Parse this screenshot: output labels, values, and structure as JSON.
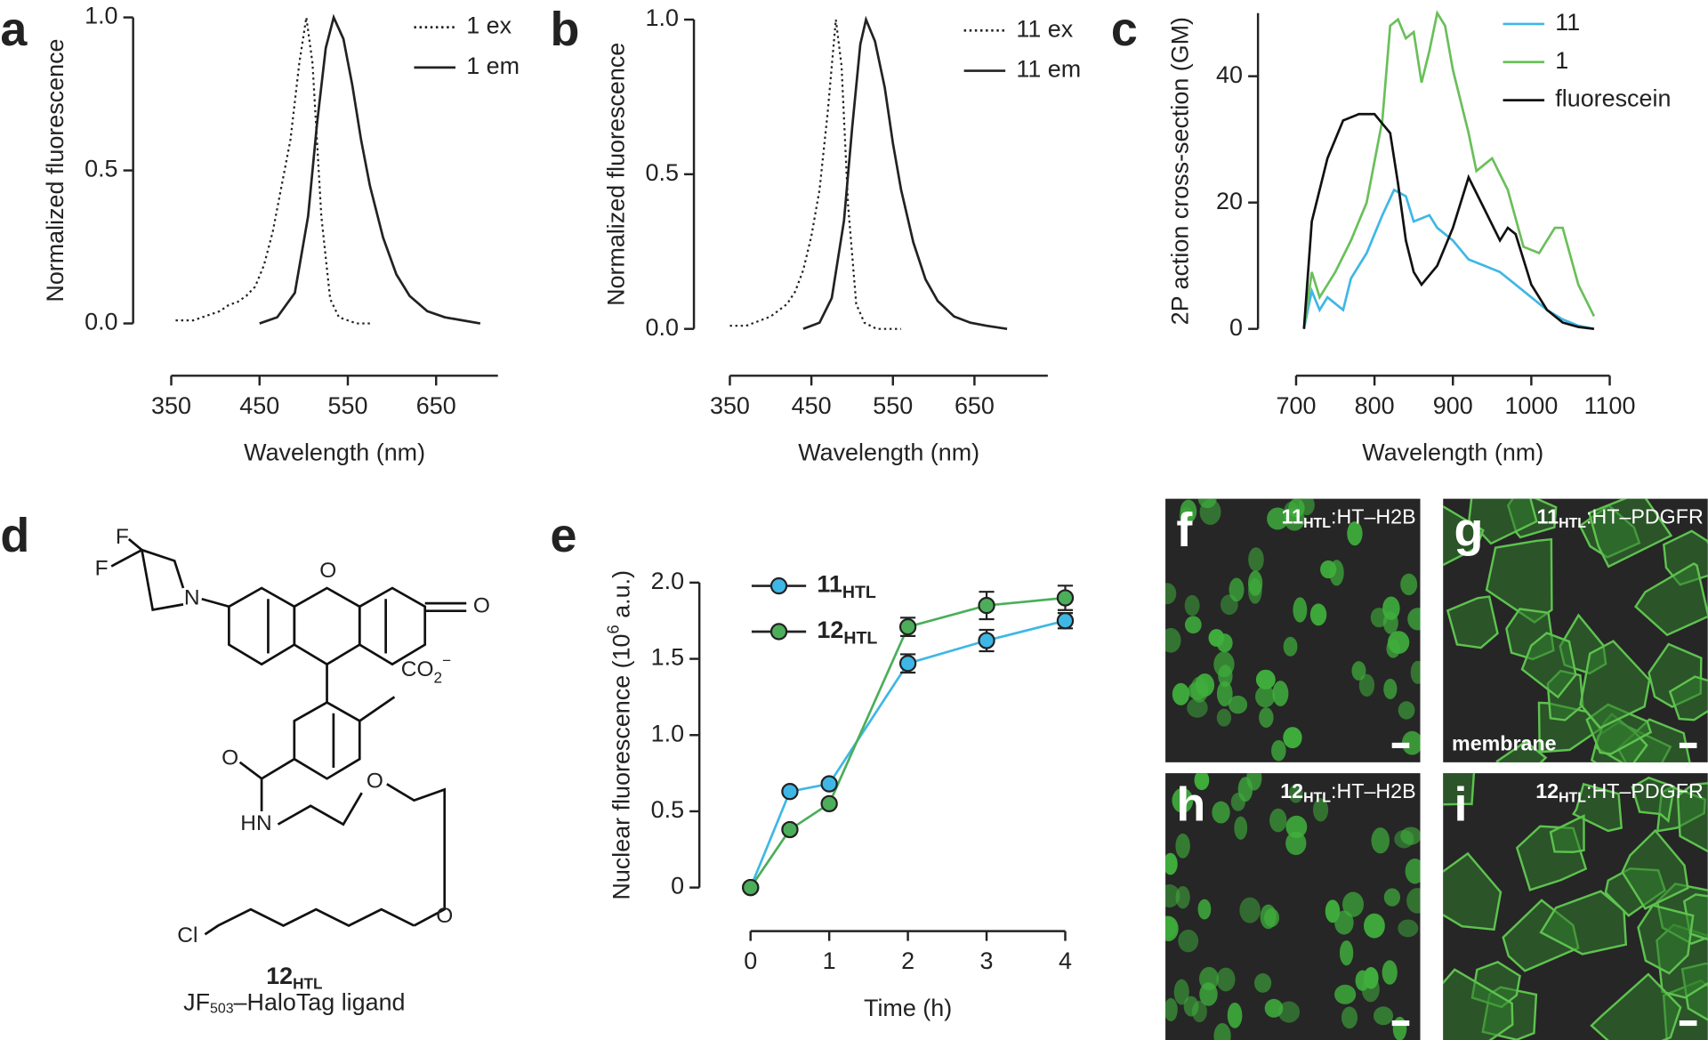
{
  "chart_data": [
    {
      "type": "line",
      "panel": "a",
      "xlabel": "Wavelength (nm)",
      "ylabel": "Normalized fluorescence",
      "xlim": [
        350,
        720
      ],
      "xticks": [
        350,
        450,
        550,
        650
      ],
      "ylim": [
        0,
        1
      ],
      "yticks": [
        {
          "value": 0,
          "label": "0.0"
        },
        0.5,
        {
          "value": 1,
          "label": "1.0"
        }
      ],
      "series": [
        {
          "name": "1 ex",
          "color": "#222222",
          "style": "dotted",
          "x": [
            355,
            365,
            375,
            385,
            395,
            405,
            415,
            425,
            435,
            445,
            455,
            465,
            475,
            485,
            495,
            503,
            510,
            520,
            530,
            540,
            550,
            560,
            575
          ],
          "values": [
            0.01,
            0.01,
            0.01,
            0.02,
            0.03,
            0.04,
            0.06,
            0.07,
            0.09,
            0.12,
            0.19,
            0.3,
            0.45,
            0.6,
            0.85,
            1.0,
            0.85,
            0.35,
            0.08,
            0.02,
            0.01,
            0.0,
            0.0
          ]
        },
        {
          "name": "1 em",
          "color": "#222222",
          "style": "solid",
          "x": [
            450,
            470,
            490,
            505,
            515,
            525,
            534,
            545,
            555,
            565,
            575,
            590,
            605,
            620,
            640,
            660,
            680,
            700
          ],
          "values": [
            0.0,
            0.02,
            0.1,
            0.35,
            0.65,
            0.9,
            1.0,
            0.93,
            0.78,
            0.6,
            0.45,
            0.28,
            0.16,
            0.09,
            0.04,
            0.02,
            0.01,
            0.0
          ]
        }
      ]
    },
    {
      "type": "line",
      "panel": "b",
      "xlabel": "Wavelength (nm)",
      "ylabel": "Normalized fluorescence",
      "xlim": [
        350,
        740
      ],
      "xticks": [
        350,
        450,
        550,
        650
      ],
      "ylim": [
        0,
        1
      ],
      "yticks": [
        {
          "value": 0,
          "label": "0.0"
        },
        0.5,
        {
          "value": 1,
          "label": "1.0"
        }
      ],
      "series": [
        {
          "name": "11 ex",
          "color": "#222222",
          "style": "dotted",
          "x": [
            350,
            360,
            370,
            380,
            390,
            400,
            410,
            420,
            430,
            440,
            450,
            460,
            470,
            480,
            487,
            495,
            505,
            515,
            530,
            560
          ],
          "values": [
            0.01,
            0.01,
            0.01,
            0.02,
            0.03,
            0.04,
            0.06,
            0.08,
            0.12,
            0.19,
            0.3,
            0.45,
            0.7,
            1.0,
            0.85,
            0.4,
            0.08,
            0.02,
            0.0,
            0.0
          ]
        },
        {
          "name": "11 em",
          "color": "#222222",
          "style": "solid",
          "x": [
            440,
            460,
            475,
            490,
            500,
            510,
            517,
            528,
            540,
            550,
            560,
            575,
            590,
            605,
            625,
            645,
            665,
            690
          ],
          "values": [
            0.0,
            0.02,
            0.1,
            0.35,
            0.65,
            0.92,
            1.0,
            0.93,
            0.78,
            0.6,
            0.45,
            0.28,
            0.16,
            0.09,
            0.04,
            0.02,
            0.01,
            0.0
          ]
        }
      ]
    },
    {
      "type": "line",
      "panel": "c",
      "xlabel": "Wavelength (nm)",
      "ylabel": "2P action cross-section (GM)",
      "xlim": [
        700,
        1100
      ],
      "xticks": [
        700,
        800,
        900,
        1000,
        1100
      ],
      "ylim": [
        0,
        50
      ],
      "yticks": [
        0,
        20,
        40
      ],
      "series": [
        {
          "name": "11",
          "color": "#3fb7e6",
          "style": "solid",
          "x": [
            710,
            720,
            730,
            740,
            760,
            770,
            790,
            810,
            825,
            840,
            850,
            870,
            880,
            900,
            920,
            940,
            960,
            980,
            1000,
            1020,
            1040,
            1060,
            1080
          ],
          "values": [
            0,
            6,
            3,
            5,
            3,
            8,
            12,
            18,
            22,
            21,
            17,
            18,
            16,
            14,
            11,
            10,
            9,
            7,
            5,
            3,
            1.5,
            0.5,
            0
          ]
        },
        {
          "name": "1",
          "color": "#6abf5a",
          "style": "solid",
          "x": [
            710,
            720,
            730,
            750,
            770,
            790,
            810,
            820,
            830,
            840,
            850,
            860,
            870,
            880,
            890,
            900,
            920,
            930,
            940,
            950,
            970,
            990,
            1010,
            1030,
            1040,
            1060,
            1080
          ],
          "values": [
            0,
            9,
            5,
            9,
            14,
            20,
            33,
            48,
            49,
            46,
            47,
            39,
            44,
            50,
            48,
            41,
            31,
            25,
            26,
            27,
            22,
            13,
            12,
            16,
            16,
            7,
            2
          ]
        },
        {
          "name": "fluorescein",
          "color": "#111111",
          "style": "solid",
          "x": [
            710,
            720,
            740,
            760,
            780,
            800,
            820,
            830,
            840,
            850,
            860,
            880,
            900,
            920,
            940,
            960,
            970,
            980,
            1000,
            1020,
            1040,
            1060,
            1080
          ],
          "values": [
            0,
            17,
            27,
            33,
            34,
            34,
            31,
            23,
            14,
            9,
            7,
            10,
            16,
            24,
            19,
            14,
            16,
            15,
            7,
            3,
            1,
            0.3,
            0
          ]
        }
      ]
    },
    {
      "type": "line",
      "panel": "e",
      "xlabel": "Time (h)",
      "ylabel": "Nuclear fluorescence (10",
      "ylabel_sup": "6",
      "ylabel_end": " a.u.)",
      "xlim": [
        0,
        4
      ],
      "xticks": [
        0,
        1,
        2,
        3,
        4
      ],
      "ylim": [
        0,
        2
      ],
      "yticks": [
        0,
        0.5,
        {
          "value": 1,
          "label": "1.0"
        },
        1.5,
        {
          "value": 2,
          "label": "2.0"
        }
      ],
      "markers": true,
      "x": [
        0,
        0.5,
        1,
        2,
        3,
        4
      ],
      "series": [
        {
          "name": "11",
          "name_sub": "HTL",
          "color": "#3fb7e6",
          "style": "solid",
          "values": [
            0,
            0.63,
            0.68,
            1.47,
            1.62,
            1.75
          ],
          "errors": [
            0,
            0.02,
            0.02,
            0.06,
            0.07,
            0.05
          ]
        },
        {
          "name": "12",
          "name_sub": "HTL",
          "color": "#4cae5a",
          "style": "solid",
          "values": [
            0,
            0.38,
            0.55,
            1.71,
            1.85,
            1.9
          ],
          "errors": [
            0,
            0.02,
            0.02,
            0.06,
            0.09,
            0.08
          ]
        }
      ]
    }
  ],
  "structure": {
    "panel": "d",
    "atoms": [
      "F",
      "F",
      "N",
      "O",
      "O",
      "O",
      "HN",
      "O",
      "O",
      "Cl"
    ],
    "carboxylate": {
      "text": "CO",
      "sub": "2",
      "sup": "−"
    },
    "name": {
      "text": "12",
      "sub": "HTL"
    },
    "caption": {
      "text": "JF",
      "sub": "503",
      "end": "–HaloTag ligand"
    }
  },
  "images": [
    {
      "panel": "f",
      "compound": "11",
      "sub": "HTL",
      "target": ":HT–H2B"
    },
    {
      "panel": "g",
      "compound": "11",
      "sub": "HTL",
      "target": ":HT–PDGFR",
      "note": "membrane"
    },
    {
      "panel": "h",
      "compound": "12",
      "sub": "HTL",
      "target": ":HT–H2B"
    },
    {
      "panel": "i",
      "compound": "12",
      "sub": "HTL",
      "target": ":HT–PDGFR"
    }
  ]
}
